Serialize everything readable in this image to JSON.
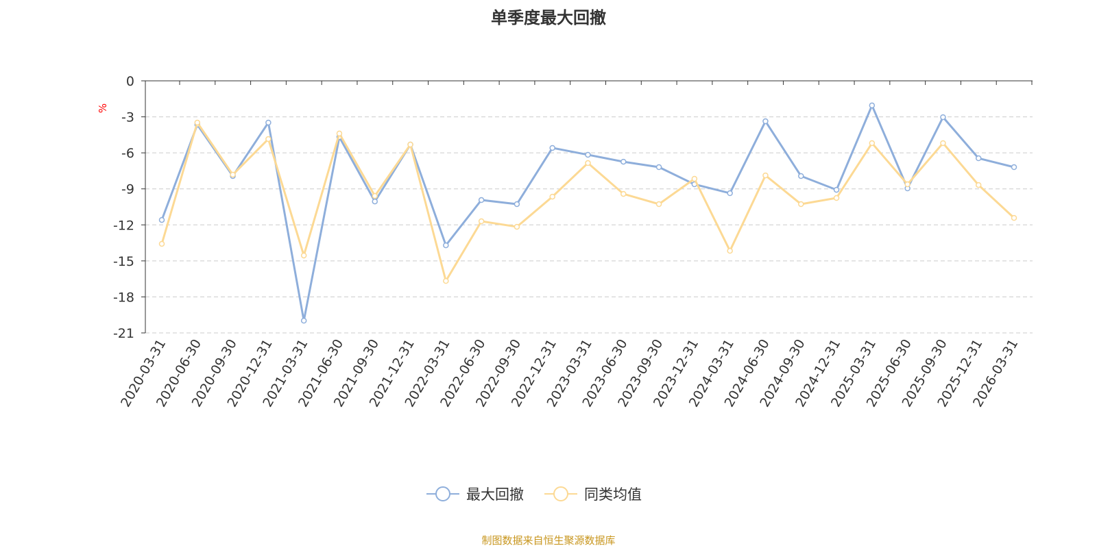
{
  "chart_data": {
    "type": "line",
    "title": "单季度最大回撤",
    "ylabel": "%",
    "xlabel": "",
    "ylim": [
      -21,
      0
    ],
    "yticks": [
      0,
      -3,
      -6,
      -9,
      -12,
      -15,
      -18,
      -21
    ],
    "grid": true,
    "legend_position": "bottom",
    "categories": [
      "2020-03-31",
      "2020-06-30",
      "2020-09-30",
      "2020-12-31",
      "2021-03-31",
      "2021-06-30",
      "2021-09-30",
      "2021-12-31",
      "2022-03-31",
      "2022-06-30",
      "2022-09-30",
      "2022-12-31",
      "2023-03-31",
      "2023-06-30",
      "2023-09-30",
      "2023-12-31",
      "2024-03-31",
      "2024-06-30",
      "2024-09-30",
      "2024-12-31",
      "2025-03-31",
      "2025-06-30",
      "2025-09-30",
      "2025-12-31",
      "2026-03-31"
    ],
    "series": [
      {
        "name": "最大回撤",
        "color": "#8eaedb",
        "values": [
          -11.59,
          -3.65,
          -7.93,
          -3.48,
          -19.98,
          -4.68,
          -10.05,
          -5.31,
          -13.7,
          -9.93,
          -10.27,
          -5.59,
          -6.16,
          -6.74,
          -7.19,
          -8.62,
          -9.36,
          -3.37,
          -7.93,
          -9.08,
          -2.05,
          -8.96,
          -3.03,
          -6.45,
          -7.19
        ]
      },
      {
        "name": "同类均值",
        "color": "#fcd994",
        "values": [
          -13.58,
          -3.48,
          -7.82,
          -4.85,
          -14.55,
          -4.39,
          -9.59,
          -5.31,
          -16.67,
          -11.7,
          -12.16,
          -9.65,
          -6.85,
          -9.42,
          -10.27,
          -8.16,
          -14.16,
          -7.88,
          -10.27,
          -9.76,
          -5.19,
          -8.62,
          -5.19,
          -8.68,
          -11.42
        ]
      }
    ]
  },
  "source": "制图数据来自恒生聚源数据库"
}
